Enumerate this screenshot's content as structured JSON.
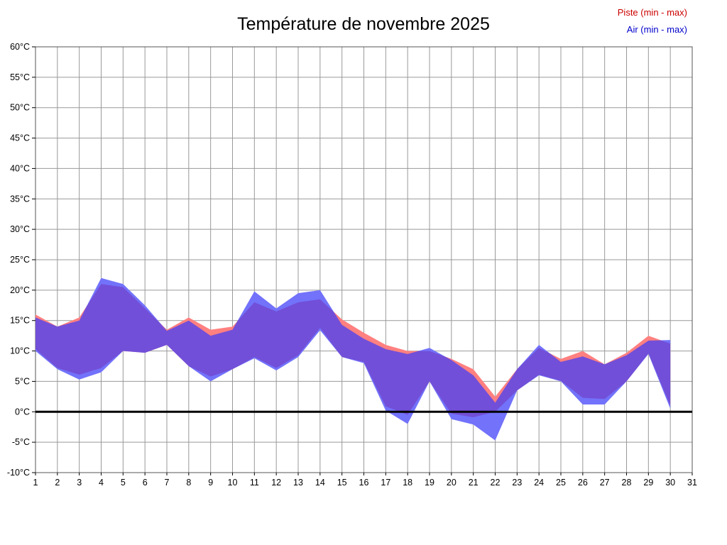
{
  "title": "Température de novembre 2025",
  "legend": {
    "piste": {
      "label": "Piste (min - max)",
      "color": "#cc0000"
    },
    "air": {
      "label": "Air (min - max)",
      "color": "#0000cc"
    }
  },
  "colors": {
    "piste_fill": "#ff8080",
    "air_fill": "#3c3cfa",
    "air_fill_opacity": 0.72,
    "overlap_appearance": "#734fd8",
    "grid": "#999999",
    "frame": "#555555",
    "zero_line": "#000000",
    "background": "#ffffff"
  },
  "axes": {
    "xlim": [
      1,
      31
    ],
    "ylim": [
      -10,
      60
    ],
    "x_ticks": [
      1,
      2,
      3,
      4,
      5,
      6,
      7,
      8,
      9,
      10,
      11,
      12,
      13,
      14,
      15,
      16,
      17,
      18,
      19,
      20,
      21,
      22,
      23,
      24,
      25,
      26,
      27,
      28,
      29,
      30,
      31
    ],
    "y_ticks": [
      "60°C",
      "55°C",
      "50°C",
      "45°C",
      "40°C",
      "35°C",
      "30°C",
      "25°C",
      "20°C",
      "15°C",
      "10°C",
      "5°C",
      "0°C",
      "-5°C",
      "-10°C"
    ],
    "grid": true
  },
  "chart_data": {
    "type": "area",
    "title": "Température de novembre 2025",
    "xlabel": "",
    "ylabel": "",
    "unit": "°C",
    "xlim": [
      1,
      31
    ],
    "ylim": [
      -10,
      60
    ],
    "grid": true,
    "legend_position": "top-right",
    "x": [
      1,
      2,
      3,
      4,
      5,
      6,
      7,
      8,
      9,
      10,
      11,
      12,
      13,
      14,
      15,
      16,
      17,
      18,
      19,
      20,
      21,
      22,
      23,
      24,
      25,
      26,
      27,
      28,
      29,
      30
    ],
    "series": [
      {
        "name": "piste_max",
        "values": [
          16,
          14,
          15.5,
          21,
          20.5,
          17,
          13.5,
          15.5,
          13.5,
          14,
          18,
          16.5,
          18,
          18.5,
          15.2,
          13,
          11,
          10,
          10,
          8.7,
          7,
          2.5,
          7,
          10.5,
          8.7,
          10,
          7.8,
          9.7,
          12.5,
          11.2
        ]
      },
      {
        "name": "piste_min",
        "values": [
          10.3,
          7.2,
          6.1,
          7.2,
          10,
          9.7,
          11,
          7.5,
          5.8,
          7,
          9,
          7.2,
          9.3,
          13.8,
          9,
          8.2,
          0.9,
          -0.5,
          5,
          -0.3,
          -0.9,
          0,
          3.5,
          6.1,
          5.1,
          2.3,
          2.1,
          5,
          9.6,
          1
        ]
      },
      {
        "name": "air_max",
        "values": [
          15.5,
          14,
          15,
          22,
          21,
          17.5,
          13.3,
          15,
          12.5,
          13.5,
          19.8,
          17,
          19.5,
          20,
          14.3,
          12,
          10.3,
          9.5,
          10.5,
          8.5,
          6,
          1.5,
          7,
          11,
          8.2,
          9.1,
          7.8,
          9.3,
          11.7,
          11.8
        ]
      },
      {
        "name": "air_min",
        "values": [
          10,
          7,
          5.3,
          6.5,
          10,
          9.7,
          11,
          7.5,
          5,
          7,
          8.8,
          6.8,
          9,
          13.4,
          9,
          8,
          0.2,
          -2,
          5,
          -1.2,
          -2.1,
          -4.7,
          3.5,
          6,
          5,
          1.2,
          1.2,
          5,
          9.5,
          0.5
        ]
      }
    ]
  }
}
